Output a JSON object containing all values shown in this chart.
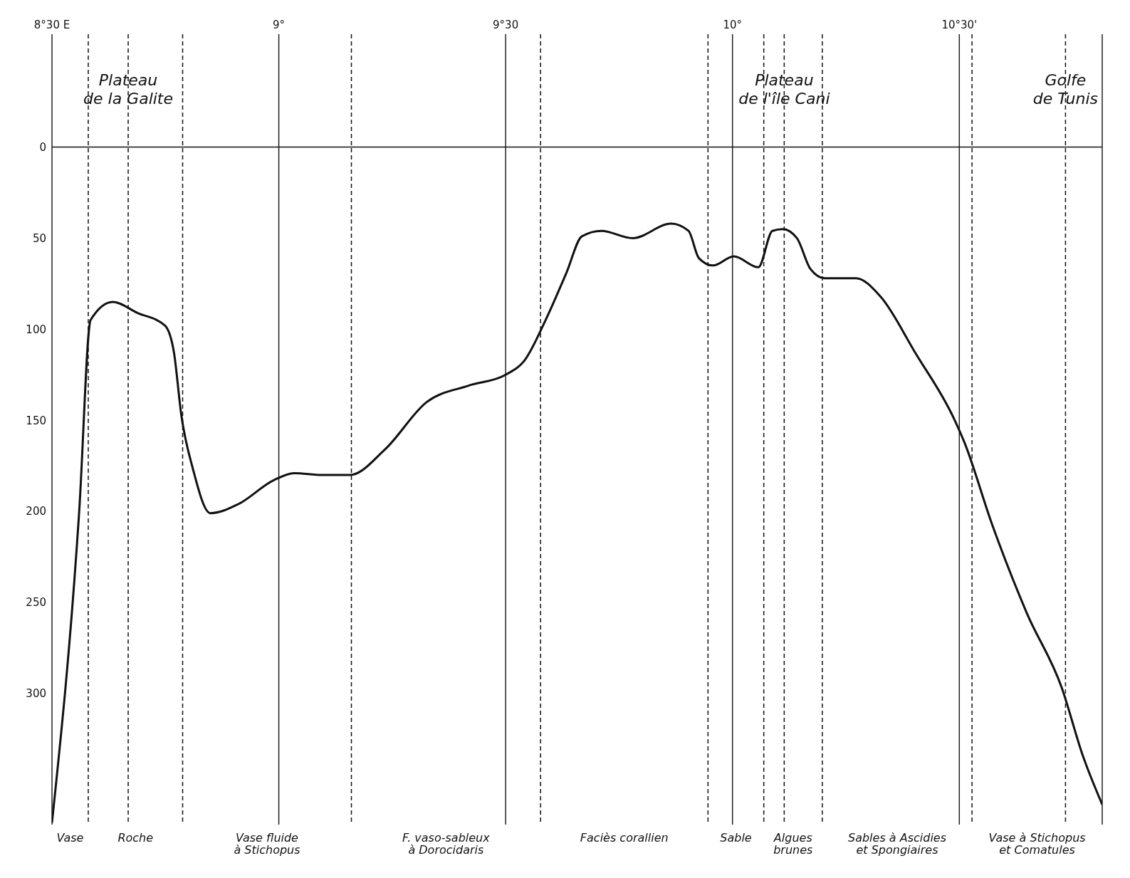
{
  "chart_data": {
    "type": "line",
    "color": "#111111",
    "x": [
      8.5,
      8.56,
      8.585,
      8.634,
      8.688,
      8.749,
      8.769,
      8.785,
      8.811,
      8.849,
      8.911,
      8.988,
      9.034,
      9.095,
      9.157,
      9.234,
      9.326,
      9.418,
      9.5,
      9.542,
      9.588,
      9.634,
      9.668,
      9.711,
      9.78,
      9.865,
      9.903,
      9.926,
      9.957,
      10.003,
      10.057,
      10.088,
      10.111,
      10.142,
      10.172,
      10.203,
      10.272,
      10.326,
      10.403,
      10.488,
      10.511,
      10.572,
      10.649,
      10.726,
      10.772,
      10.815
    ],
    "values": [
      371,
      200,
      95,
      85,
      91,
      98,
      113,
      147,
      177,
      201,
      196,
      183,
      179,
      180,
      180,
      166,
      140,
      131,
      125,
      117,
      95,
      69,
      49,
      46,
      50,
      42,
      46,
      61,
      65,
      60,
      66,
      46,
      45,
      50,
      67,
      72,
      72,
      82,
      113,
      149,
      162,
      207,
      256,
      297,
      334,
      361
    ],
    "xlim": [
      8.5,
      10.815
    ],
    "xticks": [
      {
        "value": 8.5,
        "label": "8°30 E"
      },
      {
        "value": 9,
        "label": "9°"
      },
      {
        "value": 9.5,
        "label": "9°30"
      },
      {
        "value": 10,
        "label": "10°"
      },
      {
        "value": 10.5,
        "label": "10°30'"
      }
    ],
    "ylim": [
      372,
      -62
    ],
    "yticks": [
      0,
      50,
      100,
      150,
      200,
      250,
      300
    ],
    "grid": "x",
    "ref_lines": [
      {
        "axis": "y",
        "value": 0,
        "label": null,
        "line_style": "solid"
      },
      {
        "axis": "x",
        "value": 8.668,
        "label": "Plateau\nde la Galite",
        "line_style": "dashed"
      },
      {
        "axis": "x",
        "value": 10.114,
        "label": "Plateau\nde l'île Cani",
        "line_style": "dashed"
      },
      {
        "axis": "x",
        "value": 10.734,
        "label": "Golfe\nde Tunis",
        "line_style": "dashed"
      },
      {
        "axis": "x",
        "value": 8.58,
        "label": null,
        "line_style": "dashed"
      },
      {
        "axis": "x",
        "value": 8.788,
        "label": null,
        "line_style": "dashed"
      },
      {
        "axis": "x",
        "value": 9.16,
        "label": null,
        "line_style": "dashed"
      },
      {
        "axis": "x",
        "value": 9.577,
        "label": null,
        "line_style": "dashed"
      },
      {
        "axis": "x",
        "value": 9.946,
        "label": null,
        "line_style": "dashed"
      },
      {
        "axis": "x",
        "value": 10.069,
        "label": null,
        "line_style": "dashed"
      },
      {
        "axis": "x",
        "value": 10.198,
        "label": null,
        "line_style": "dashed"
      },
      {
        "axis": "x",
        "value": 10.528,
        "label": null,
        "line_style": "dashed"
      }
    ],
    "annotations": [
      "Vase",
      "Roche",
      "Vase fluide\nà Stichopus",
      "F. vaso-sableux\nà Dorocidaris",
      "Faciès corallien",
      "Sable",
      "Algues\nbrunes",
      "Sables à Ascidies\net Spongiaires",
      "Vase à Stichopus\net Comatules"
    ]
  }
}
